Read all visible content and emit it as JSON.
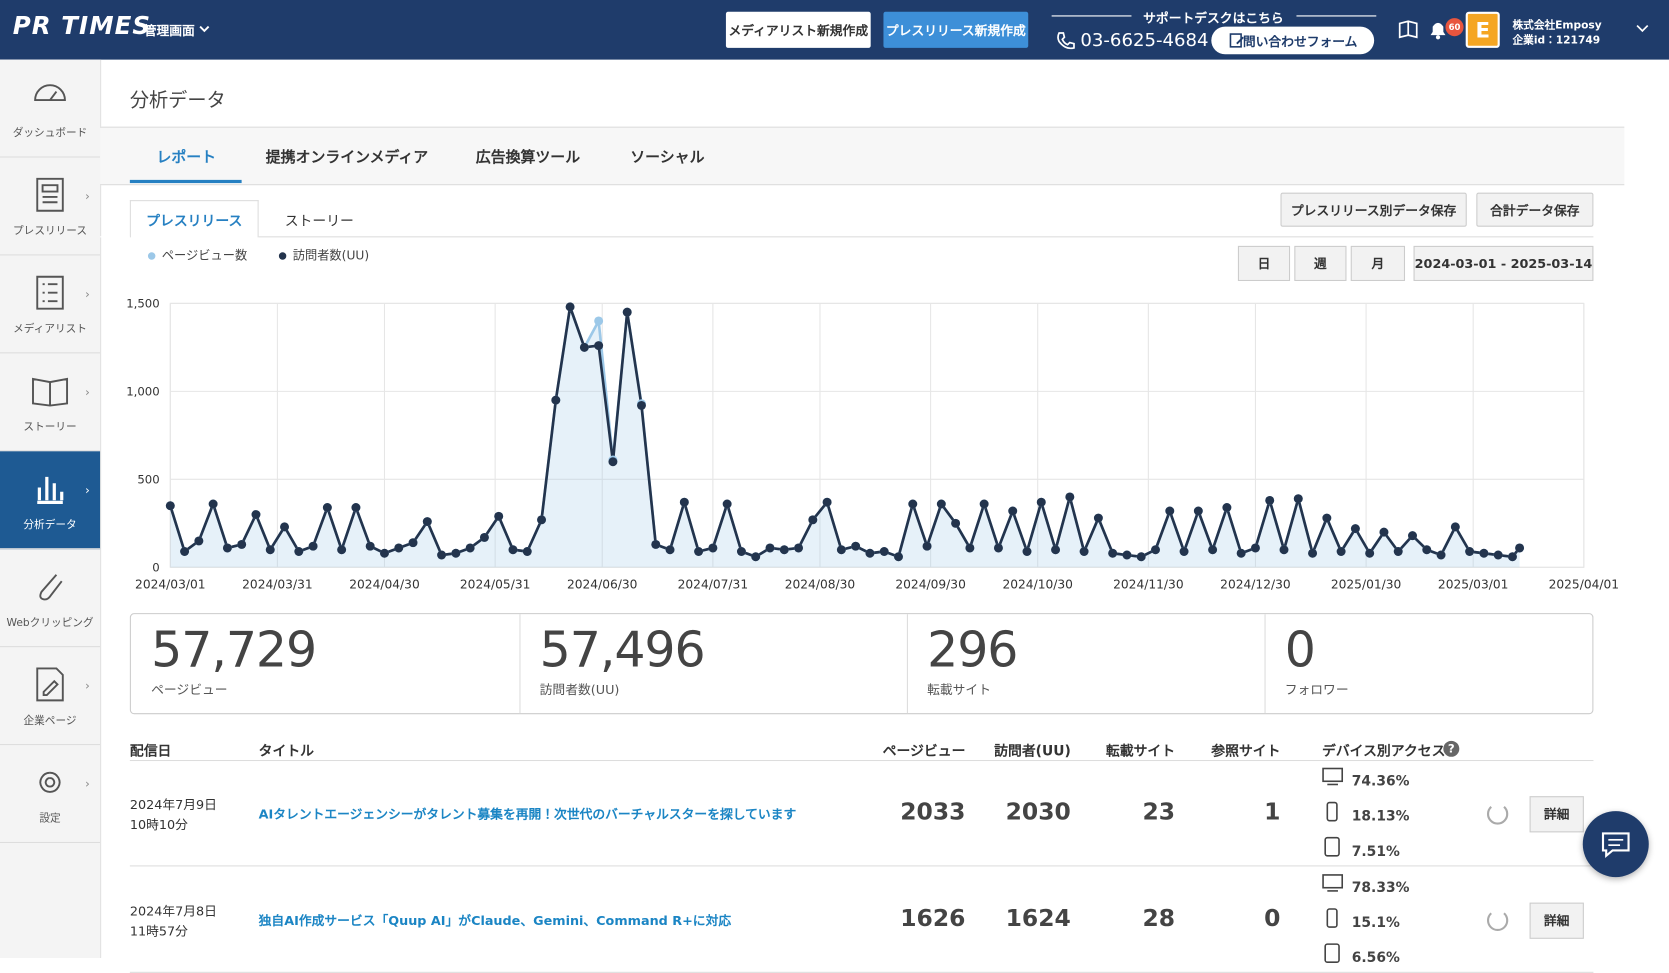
{
  "header": {
    "logo": "PR TIMES",
    "menu": "管理画面",
    "buttons": [
      "メディアリスト新規作成",
      "プレスリリース新規作成"
    ],
    "support_label": "サポートデスクはこちら",
    "phone": "03-6625-4684",
    "contact": "問い合わせフォーム",
    "notification_count": "60",
    "avatar": "E",
    "company": "株式会社Emposy",
    "company_id": "企業id：121749"
  },
  "sidebar": {
    "items": [
      "ダッシュボード",
      "プレスリリース",
      "メディアリスト",
      "ストーリー",
      "分析データ",
      "Webクリッピング",
      "企業ページ",
      "設定"
    ]
  },
  "page": {
    "title": "分析データ",
    "tabs": [
      "レポート",
      "提携オンラインメディア",
      "広告換算ツール",
      "ソーシャル"
    ],
    "subtabs": [
      "プレスリリース",
      "ストーリー"
    ],
    "save_buttons": [
      "プレスリリース別データ保存",
      "合計データ保存"
    ],
    "period_buttons": [
      "日",
      "週",
      "月"
    ],
    "date_range": "2024-03-01 - 2025-03-14"
  },
  "chart_data": {
    "type": "line",
    "x": [
      "2024/03/01",
      "2024/03/05",
      "2024/03/09",
      "2024/03/13",
      "2024/03/17",
      "2024/03/21",
      "2024/03/25",
      "2024/03/29",
      "2024/04/02",
      "2024/04/06",
      "2024/04/10",
      "2024/04/14",
      "2024/04/18",
      "2024/04/22",
      "2024/04/26",
      "2024/04/30",
      "2024/05/04",
      "2024/05/08",
      "2024/05/12",
      "2024/05/16",
      "2024/05/20",
      "2024/05/24",
      "2024/05/28",
      "2024/06/01",
      "2024/06/05",
      "2024/06/09",
      "2024/06/13",
      "2024/06/17",
      "2024/06/21",
      "2024/06/25",
      "2024/06/29",
      "2024/07/03",
      "2024/07/07",
      "2024/07/11",
      "2024/07/15",
      "2024/07/19",
      "2024/07/23",
      "2024/07/27",
      "2024/07/31",
      "2024/08/04",
      "2024/08/08",
      "2024/08/12",
      "2024/08/16",
      "2024/08/20",
      "2024/08/24",
      "2024/08/28",
      "2024/09/01",
      "2024/09/05",
      "2024/09/09",
      "2024/09/13",
      "2024/09/17",
      "2024/09/21",
      "2024/09/25",
      "2024/09/29",
      "2024/10/03",
      "2024/10/07",
      "2024/10/11",
      "2024/10/15",
      "2024/10/19",
      "2024/10/23",
      "2024/10/27",
      "2024/10/31",
      "2024/11/04",
      "2024/11/08",
      "2024/11/12",
      "2024/11/16",
      "2024/11/20",
      "2024/11/24",
      "2024/11/28",
      "2024/12/02",
      "2024/12/06",
      "2024/12/10",
      "2024/12/14",
      "2024/12/18",
      "2024/12/22",
      "2024/12/26",
      "2024/12/30",
      "2025/01/03",
      "2025/01/07",
      "2025/01/11",
      "2025/01/15",
      "2025/01/19",
      "2025/01/23",
      "2025/01/27",
      "2025/01/31",
      "2025/02/04",
      "2025/02/08",
      "2025/02/12",
      "2025/02/16",
      "2025/02/20",
      "2025/02/24",
      "2025/02/28",
      "2025/03/04",
      "2025/03/08",
      "2025/03/12",
      "2025/03/14"
    ],
    "series": [
      {
        "name": "ページビュー数",
        "color": "#9cc8e8",
        "area": true,
        "values": [
          350,
          90,
          150,
          360,
          110,
          130,
          300,
          100,
          230,
          90,
          120,
          340,
          100,
          340,
          120,
          80,
          110,
          140,
          260,
          70,
          80,
          110,
          170,
          290,
          100,
          90,
          270,
          950,
          1480,
          1250,
          1400,
          610,
          1450,
          930,
          130,
          100,
          370,
          90,
          110,
          360,
          90,
          60,
          110,
          100,
          110,
          270,
          370,
          100,
          120,
          80,
          90,
          60,
          360,
          120,
          360,
          250,
          110,
          360,
          110,
          320,
          90,
          370,
          100,
          400,
          90,
          280,
          80,
          70,
          60,
          100,
          320,
          90,
          320,
          100,
          340,
          80,
          110,
          380,
          100,
          390,
          80,
          280,
          90,
          220,
          80,
          200,
          90,
          180,
          100,
          70,
          230,
          90,
          80,
          70,
          60,
          110
        ]
      },
      {
        "name": "訪問者数(UU)",
        "color": "#23344d",
        "area": false,
        "values": [
          350,
          90,
          150,
          360,
          110,
          130,
          300,
          100,
          230,
          90,
          120,
          340,
          100,
          340,
          120,
          80,
          110,
          140,
          260,
          70,
          80,
          110,
          170,
          290,
          100,
          90,
          270,
          950,
          1480,
          1250,
          1260,
          600,
          1450,
          920,
          130,
          100,
          370,
          90,
          110,
          360,
          90,
          60,
          110,
          100,
          110,
          270,
          370,
          100,
          120,
          80,
          90,
          60,
          360,
          120,
          360,
          250,
          110,
          360,
          110,
          320,
          90,
          370,
          100,
          400,
          90,
          280,
          80,
          70,
          60,
          100,
          320,
          90,
          320,
          100,
          340,
          80,
          110,
          380,
          100,
          390,
          80,
          280,
          90,
          220,
          80,
          200,
          90,
          180,
          100,
          70,
          230,
          90,
          80,
          70,
          60,
          110
        ]
      }
    ],
    "xlim": [
      "2024/03/01",
      "2025/04/01"
    ],
    "xticks": [
      "2024/03/01",
      "2024/03/31",
      "2024/04/30",
      "2024/05/31",
      "2024/06/30",
      "2024/07/31",
      "2024/08/30",
      "2024/09/30",
      "2024/10/30",
      "2024/11/30",
      "2024/12/30",
      "2025/01/30",
      "2025/03/01",
      "2025/04/01"
    ],
    "ylim": [
      0,
      1500
    ],
    "yticks": [
      0,
      500,
      {
        "value": 1000,
        "label": "1,000"
      },
      {
        "value": 1500,
        "label": "1,500"
      }
    ],
    "grid": true
  },
  "stats": [
    {
      "value": "57,729",
      "label": "ページビュー"
    },
    {
      "value": "57,496",
      "label": "訪問者数(UU)"
    },
    {
      "value": "296",
      "label": "転載サイト"
    },
    {
      "value": "0",
      "label": "フォロワー"
    }
  ],
  "table": {
    "headers": [
      "配信日",
      "タイトル",
      "ページビュー",
      "訪問者(UU)",
      "転載サイト",
      "参照サイト",
      "デバイス別アクセス"
    ],
    "rows": [
      {
        "date": "2024年7月9日",
        "time": "10時10分",
        "title": "AIタレントエージェンシーがタレント募集を再開！次世代のバーチャルスターを探しています",
        "pageviews": 2033,
        "visitors": 2030,
        "reposts": 23,
        "referrers": 1,
        "devices": [
          "74.36%",
          "18.13%",
          "7.51%"
        ],
        "action": "詳細"
      },
      {
        "date": "2024年7月8日",
        "time": "11時57分",
        "title": "独自AI作成サービス「Quup AI」がClaude、Gemini、Command R+に対応",
        "pageviews": 1626,
        "visitors": 1624,
        "reposts": 28,
        "referrers": 0,
        "devices": [
          "78.33%",
          "15.1%",
          "6.56%"
        ],
        "action": "詳細"
      }
    ]
  }
}
